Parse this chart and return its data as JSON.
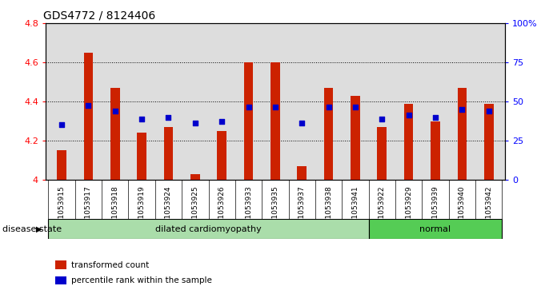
{
  "title": "GDS4772 / 8124406",
  "samples": [
    "GSM1053915",
    "GSM1053917",
    "GSM1053918",
    "GSM1053919",
    "GSM1053924",
    "GSM1053925",
    "GSM1053926",
    "GSM1053933",
    "GSM1053935",
    "GSM1053937",
    "GSM1053938",
    "GSM1053941",
    "GSM1053922",
    "GSM1053929",
    "GSM1053939",
    "GSM1053940",
    "GSM1053942"
  ],
  "bar_values": [
    4.15,
    4.65,
    4.47,
    4.24,
    4.27,
    4.03,
    4.25,
    4.6,
    4.6,
    4.07,
    4.47,
    4.43,
    4.27,
    4.39,
    4.3,
    4.47,
    4.39
  ],
  "blue_values": [
    4.28,
    4.38,
    4.35,
    4.31,
    4.32,
    4.29,
    4.3,
    4.37,
    4.37,
    4.29,
    4.37,
    4.37,
    4.31,
    4.33,
    4.32,
    4.36,
    4.35
  ],
  "disease_groups": [
    {
      "label": "dilated cardiomyopathy",
      "start": 0,
      "end": 11,
      "color": "#AADDAA"
    },
    {
      "label": "normal",
      "start": 12,
      "end": 16,
      "color": "#55CC55"
    }
  ],
  "ylim_left": [
    4.0,
    4.8
  ],
  "ylim_right": [
    0,
    100
  ],
  "bar_color": "#CC2200",
  "blue_color": "#0000CC",
  "bar_width": 0.35,
  "background_color": "#DDDDDD",
  "tick_bg_color": "#CCCCCC",
  "legend_red": "transformed count",
  "legend_blue": "percentile rank within the sample",
  "disease_label": "disease state",
  "left_ticks": [
    4.0,
    4.2,
    4.4,
    4.6,
    4.8
  ],
  "left_tick_labels": [
    "4",
    "4.2",
    "4.4",
    "4.6",
    "4.8"
  ],
  "right_ticks": [
    0,
    25,
    50,
    75,
    100
  ],
  "right_tick_labels": [
    "0",
    "25",
    "50",
    "75",
    "100%"
  ]
}
